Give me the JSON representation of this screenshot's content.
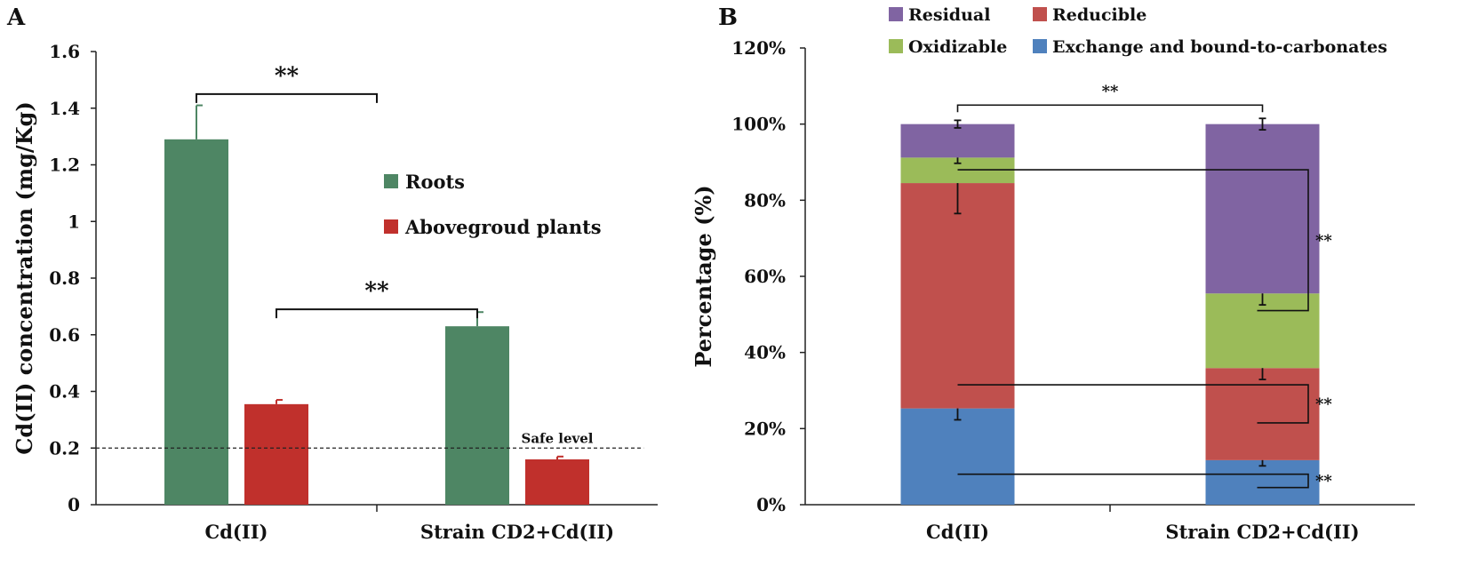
{
  "chart_data": [
    {
      "panel": "A",
      "type": "bar",
      "ylabel": "Cd(II) concentration (mg/Kg)",
      "xlabel": "",
      "ylim": [
        0,
        1.6
      ],
      "yticks": [
        0,
        0.2,
        0.4,
        0.6,
        0.8,
        1,
        1.2,
        1.4,
        1.6
      ],
      "ytick_labels": [
        "0",
        "0.2",
        "0.4",
        "0.6",
        "0.8",
        "1",
        "1.2",
        "1.4",
        "1.6"
      ],
      "categories": [
        "Cd(II)",
        "Strain CD2+Cd(II)"
      ],
      "series": [
        {
          "name": "Roots",
          "color": "#4e8664",
          "values": [
            1.29,
            0.63
          ],
          "errors": [
            0.12,
            0.05
          ]
        },
        {
          "name": "Abovegroud plants",
          "color": "#c0302c",
          "values": [
            0.355,
            0.16
          ],
          "errors": [
            0.015,
            0.01
          ]
        }
      ],
      "reference_line": {
        "value": 0.2,
        "label": "Safe level"
      },
      "significance": [
        {
          "label": "**",
          "from": {
            "category": 0,
            "series": 0
          },
          "to": "category-gap",
          "level": 1.45
        },
        {
          "label": "**",
          "from": {
            "category": 0,
            "series": 1
          },
          "to": {
            "category": 1,
            "series": 0
          },
          "level": 0.69
        }
      ]
    },
    {
      "panel": "B",
      "type": "bar",
      "stacked": true,
      "ylabel": "Percentage (%)",
      "xlabel": "",
      "ylim": [
        0,
        120
      ],
      "yticks": [
        0,
        20,
        40,
        60,
        80,
        100,
        120
      ],
      "ytick_labels": [
        "0%",
        "20%",
        "40%",
        "60%",
        "80%",
        "100%",
        "120%"
      ],
      "categories": [
        "Cd(II)",
        "Strain CD2+Cd(II)"
      ],
      "series": [
        {
          "name": "Exchange and bound-to-carbonates",
          "color": "#4f81bd",
          "values": [
            25.3,
            11.7
          ],
          "errors": [
            3,
            1.5
          ]
        },
        {
          "name": "Reducible",
          "color": "#c0504d",
          "values": [
            59.2,
            24.2
          ],
          "errors": [
            8,
            3
          ]
        },
        {
          "name": "Oxidizable",
          "color": "#9bbb59",
          "values": [
            6.7,
            19.6
          ],
          "errors": [
            1.5,
            3
          ]
        },
        {
          "name": "Residual",
          "color": "#8064a2",
          "values": [
            8.8,
            44.5
          ],
          "errors": [
            1,
            1.5
          ]
        }
      ],
      "legend_order": [
        "Residual",
        "Reducible",
        "Oxidizable",
        "Exchange and bound-to-carbonates"
      ],
      "legend": "top",
      "significance": [
        {
          "label": "**",
          "between": "totals",
          "level": 105
        },
        {
          "label": "**",
          "fraction": "Residual"
        },
        {
          "label": "**",
          "fraction": "Reducible"
        },
        {
          "label": "**",
          "fraction": "Exchange and bound-to-carbonates"
        }
      ]
    }
  ],
  "panels": {
    "a_label": "A",
    "b_label": "B"
  }
}
